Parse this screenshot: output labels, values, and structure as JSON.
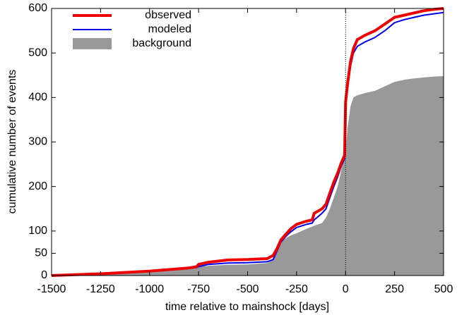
{
  "chart_data": {
    "type": "line",
    "xlabel": "time relative to mainshock [days]",
    "ylabel": "cumulative number of events",
    "x": [
      -1500,
      -1250,
      -1000,
      -800,
      -760,
      -750,
      -700,
      -600,
      -500,
      -400,
      -370,
      -350,
      -330,
      -300,
      -280,
      -250,
      -200,
      -170,
      -160,
      -120,
      -100,
      -80,
      -60,
      -40,
      -20,
      -5,
      0,
      10,
      25,
      40,
      60,
      100,
      150,
      200,
      250,
      300,
      350,
      400,
      450,
      500
    ],
    "series": [
      {
        "name": "background",
        "color": "#999999",
        "style": "area",
        "values": [
          0,
          3,
          8,
          15,
          18,
          20,
          22,
          24,
          25,
          28,
          35,
          60,
          75,
          85,
          90,
          95,
          105,
          110,
          112,
          118,
          130,
          150,
          175,
          200,
          240,
          270,
          280,
          330,
          380,
          400,
          405,
          410,
          415,
          425,
          435,
          440,
          443,
          445,
          447,
          448
        ]
      },
      {
        "name": "modeled",
        "color": "#0000ee",
        "style": "line",
        "values": [
          0,
          4,
          9,
          16,
          18,
          20,
          25,
          28,
          29,
          31,
          36,
          55,
          75,
          90,
          98,
          108,
          115,
          118,
          125,
          140,
          150,
          175,
          200,
          222,
          248,
          262,
          380,
          420,
          470,
          500,
          515,
          525,
          535,
          550,
          568,
          575,
          580,
          585,
          588,
          591
        ]
      },
      {
        "name": "observed",
        "color": "#ee0000",
        "style": "line",
        "values": [
          0,
          4,
          10,
          17,
          20,
          25,
          30,
          35,
          36,
          38,
          45,
          60,
          80,
          95,
          105,
          115,
          122,
          125,
          140,
          150,
          160,
          185,
          210,
          230,
          255,
          270,
          390,
          430,
          480,
          510,
          530,
          540,
          550,
          565,
          580,
          585,
          590,
          595,
          598,
          600
        ]
      }
    ],
    "xlim": [
      -1500,
      500
    ],
    "ylim": [
      0,
      600
    ],
    "xticks": [
      -1500,
      -1250,
      -1000,
      -750,
      -500,
      -250,
      0,
      250,
      500
    ],
    "yticks": [
      0,
      50,
      100,
      200,
      300,
      400,
      500,
      600
    ],
    "vline": 0,
    "legend": "top-left"
  }
}
